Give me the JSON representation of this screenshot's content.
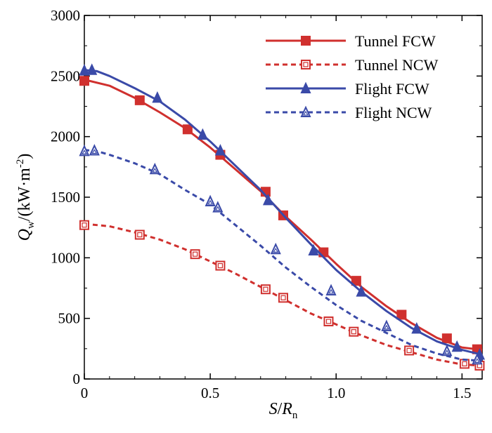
{
  "chart_data": {
    "type": "line",
    "title": "",
    "xlabel_var": "S",
    "xlabel_sep": "/",
    "xlabel_main": "R",
    "xlabel_sub": "n",
    "ylabel_main": "Q",
    "ylabel_sub": "w",
    "ylabel_unit_pre": "/(kW·m",
    "ylabel_unit_sup": "-2",
    "ylabel_unit_post": ")",
    "xlim": [
      0,
      1.58
    ],
    "ylim": [
      0,
      3000
    ],
    "xticks": [
      0,
      0.5,
      1.0,
      1.5
    ],
    "xtick_labels": [
      "0",
      "0.5",
      "1.0",
      "1.5"
    ],
    "yticks": [
      0,
      500,
      1000,
      1500,
      2000,
      2500,
      3000
    ],
    "ytick_labels": [
      "0",
      "500",
      "1000",
      "1500",
      "2000",
      "2500",
      "3000"
    ],
    "legend_position": "top-right",
    "series": [
      {
        "name": "Tunnel FCW",
        "color": "#d0302e",
        "dash": "solid",
        "marker": "square",
        "filled": true,
        "curve": [
          [
            0,
            2470
          ],
          [
            0.1,
            2420
          ],
          [
            0.2,
            2320
          ],
          [
            0.3,
            2200
          ],
          [
            0.4,
            2070
          ],
          [
            0.5,
            1910
          ],
          [
            0.6,
            1730
          ],
          [
            0.7,
            1550
          ],
          [
            0.8,
            1340
          ],
          [
            0.9,
            1150
          ],
          [
            1.0,
            950
          ],
          [
            1.1,
            760
          ],
          [
            1.2,
            600
          ],
          [
            1.3,
            460
          ],
          [
            1.4,
            340
          ],
          [
            1.5,
            260
          ],
          [
            1.58,
            240
          ]
        ],
        "markers": [
          [
            0,
            2460
          ],
          [
            0.22,
            2300
          ],
          [
            0.41,
            2060
          ],
          [
            0.54,
            1850
          ],
          [
            0.72,
            1545
          ],
          [
            0.79,
            1350
          ],
          [
            0.95,
            1045
          ],
          [
            1.08,
            810
          ],
          [
            1.26,
            530
          ],
          [
            1.44,
            335
          ],
          [
            1.56,
            245
          ]
        ]
      },
      {
        "name": "Tunnel NCW",
        "color": "#d0302e",
        "dash": "dashed",
        "marker": "square",
        "filled": false,
        "curve": [
          [
            0,
            1280
          ],
          [
            0.1,
            1260
          ],
          [
            0.2,
            1210
          ],
          [
            0.3,
            1150
          ],
          [
            0.4,
            1070
          ],
          [
            0.5,
            970
          ],
          [
            0.6,
            870
          ],
          [
            0.7,
            760
          ],
          [
            0.8,
            650
          ],
          [
            0.9,
            540
          ],
          [
            1.0,
            450
          ],
          [
            1.1,
            360
          ],
          [
            1.2,
            280
          ],
          [
            1.3,
            220
          ],
          [
            1.4,
            160
          ],
          [
            1.5,
            120
          ],
          [
            1.58,
            110
          ]
        ],
        "markers": [
          [
            0,
            1270
          ],
          [
            0.22,
            1190
          ],
          [
            0.44,
            1030
          ],
          [
            0.54,
            935
          ],
          [
            0.72,
            740
          ],
          [
            0.79,
            670
          ],
          [
            0.97,
            475
          ],
          [
            1.07,
            390
          ],
          [
            1.29,
            235
          ],
          [
            1.51,
            125
          ],
          [
            1.57,
            110
          ]
        ]
      },
      {
        "name": "Flight FCW",
        "color": "#3a4aa8",
        "dash": "solid",
        "marker": "triangle",
        "filled": true,
        "curve": [
          [
            0,
            2550
          ],
          [
            0.05,
            2540
          ],
          [
            0.1,
            2500
          ],
          [
            0.2,
            2400
          ],
          [
            0.3,
            2290
          ],
          [
            0.4,
            2140
          ],
          [
            0.5,
            1960
          ],
          [
            0.6,
            1760
          ],
          [
            0.7,
            1560
          ],
          [
            0.8,
            1330
          ],
          [
            0.9,
            1110
          ],
          [
            1.0,
            900
          ],
          [
            1.1,
            720
          ],
          [
            1.2,
            560
          ],
          [
            1.3,
            420
          ],
          [
            1.4,
            310
          ],
          [
            1.5,
            240
          ],
          [
            1.58,
            200
          ]
        ],
        "markers": [
          [
            0,
            2545
          ],
          [
            0.03,
            2550
          ],
          [
            0.29,
            2320
          ],
          [
            0.47,
            2015
          ],
          [
            0.54,
            1885
          ],
          [
            0.73,
            1475
          ],
          [
            0.91,
            1060
          ],
          [
            1.1,
            720
          ],
          [
            1.32,
            415
          ],
          [
            1.48,
            265
          ],
          [
            1.57,
            200
          ]
        ]
      },
      {
        "name": "Flight NCW",
        "color": "#3a4aa8",
        "dash": "dashed",
        "marker": "triangle",
        "filled": false,
        "curve": [
          [
            0,
            1890
          ],
          [
            0.05,
            1880
          ],
          [
            0.1,
            1850
          ],
          [
            0.2,
            1780
          ],
          [
            0.3,
            1690
          ],
          [
            0.4,
            1560
          ],
          [
            0.5,
            1440
          ],
          [
            0.6,
            1270
          ],
          [
            0.7,
            1100
          ],
          [
            0.8,
            920
          ],
          [
            0.9,
            760
          ],
          [
            1.0,
            610
          ],
          [
            1.1,
            480
          ],
          [
            1.2,
            380
          ],
          [
            1.3,
            280
          ],
          [
            1.4,
            210
          ],
          [
            1.5,
            160
          ],
          [
            1.58,
            150
          ]
        ],
        "markers": [
          [
            0,
            1880
          ],
          [
            0.04,
            1885
          ],
          [
            0.28,
            1730
          ],
          [
            0.5,
            1465
          ],
          [
            0.53,
            1415
          ],
          [
            0.76,
            1070
          ],
          [
            0.98,
            730
          ],
          [
            1.2,
            435
          ],
          [
            1.44,
            230
          ],
          [
            1.56,
            160
          ]
        ]
      }
    ]
  }
}
